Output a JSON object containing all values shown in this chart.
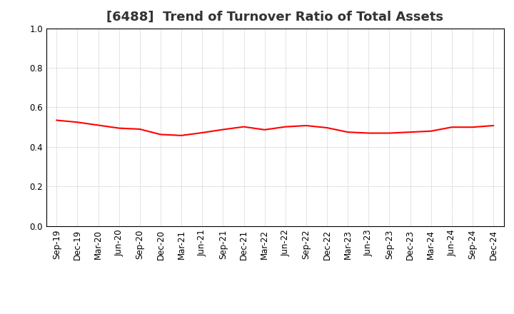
{
  "title": "[6488]  Trend of Turnover Ratio of Total Assets",
  "labels": [
    "Sep-19",
    "Dec-19",
    "Mar-20",
    "Jun-20",
    "Sep-20",
    "Dec-20",
    "Mar-21",
    "Jun-21",
    "Sep-21",
    "Dec-21",
    "Mar-22",
    "Jun-22",
    "Sep-22",
    "Dec-22",
    "Mar-23",
    "Jun-23",
    "Sep-23",
    "Dec-23",
    "Mar-24",
    "Jun-24",
    "Sep-24",
    "Dec-24"
  ],
  "values": [
    0.535,
    0.525,
    0.51,
    0.495,
    0.49,
    0.463,
    0.458,
    0.472,
    0.488,
    0.502,
    0.487,
    0.502,
    0.508,
    0.497,
    0.475,
    0.47,
    0.47,
    0.475,
    0.48,
    0.5,
    0.5,
    0.508
  ],
  "line_color": "#FF0000",
  "line_width": 1.5,
  "ylim": [
    0.0,
    1.0
  ],
  "yticks": [
    0.0,
    0.2,
    0.4,
    0.6,
    0.8,
    1.0
  ],
  "background_color": "#FFFFFF",
  "plot_bg_color": "#FFFFFF",
  "grid_color": "#AAAAAA",
  "title_fontsize": 13,
  "tick_fontsize": 8.5,
  "title_color": "#333333"
}
